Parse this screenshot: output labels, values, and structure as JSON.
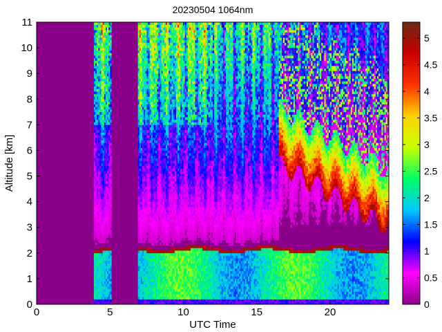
{
  "chart_data": {
    "type": "heatmap",
    "title": "20230504 1064nm",
    "xlabel": "UTC Time",
    "ylabel": "Altitude [km]",
    "xlim": [
      0,
      24
    ],
    "ylim": [
      0,
      11
    ],
    "x_ticks": [
      0,
      5,
      10,
      15,
      20
    ],
    "y_ticks": [
      0,
      1,
      2,
      3,
      4,
      5,
      6,
      7,
      8,
      9,
      10,
      11
    ],
    "colorbar": {
      "range": [
        0,
        5.3
      ],
      "ticks": [
        0,
        0.5,
        1,
        1.5,
        2,
        2.5,
        3,
        3.5,
        4,
        4.5,
        5
      ],
      "colors": [
        "#8b008b",
        "#ff00ff",
        "#0000ff",
        "#00c8ff",
        "#00ff64",
        "#c8ff00",
        "#ffd200",
        "#ff3200",
        "#c80000",
        "#6e2814"
      ]
    },
    "no_data_intervals_utc": [
      [
        0,
        3.9
      ],
      [
        5.1,
        6.9
      ]
    ],
    "features": {
      "boundary_layer_top_km": 2.2,
      "surface_blind_zone_km": 0.25,
      "upper_cloud_region_utc": [
        16.5,
        24
      ],
      "upper_cloud_base_km": [
        3,
        5.5
      ]
    }
  }
}
